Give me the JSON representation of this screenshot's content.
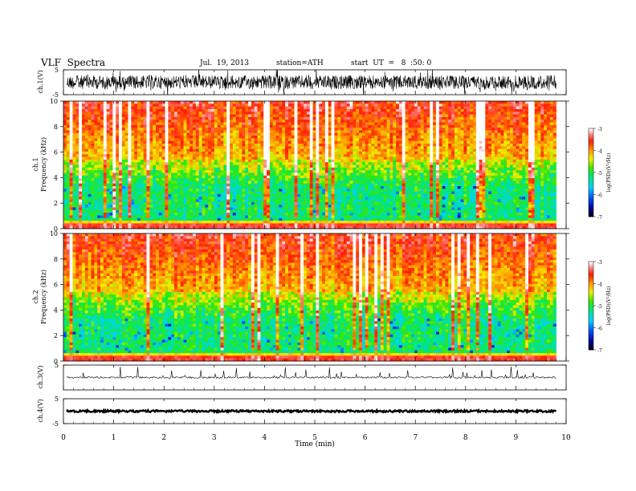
{
  "header": {
    "title": "VLF  Spectra",
    "date": "Jul.  19, 2013",
    "station": "station=ATH",
    "start": "start  UT  =   8  :50: 0"
  },
  "chart_data": [
    {
      "type": "line",
      "name": "ch1-waveform",
      "ylabel": "ch.1(V)",
      "ylim": [
        -5,
        5
      ],
      "yticks": [
        "5",
        "-5"
      ],
      "xlim": [
        0,
        10
      ]
    },
    {
      "type": "heatmap",
      "name": "ch1-spectrogram",
      "ylabel": "ch.1\nFrequency  (kHz)",
      "ylabel_lines": [
        "ch.1",
        "Frequency  (kHz)"
      ],
      "ylim": [
        0,
        10
      ],
      "yticks": [
        "0",
        "2",
        "4",
        "6",
        "8",
        "10"
      ],
      "xlim": [
        0,
        9.8
      ],
      "colorbar": {
        "label": "log(PSD)(V²/Hz)",
        "range": [
          -7,
          -3
        ],
        "ticks": [
          "-3",
          "-4",
          "-5",
          "-6",
          "-7"
        ]
      }
    },
    {
      "type": "heatmap",
      "name": "ch2-spectrogram",
      "ylabel": "ch.2\nFrequency  (kHz)",
      "ylabel_lines": [
        "ch.2",
        "Frequency  (kHz)"
      ],
      "ylim": [
        0,
        10
      ],
      "yticks": [
        "0",
        "2",
        "4",
        "6",
        "8",
        "10"
      ],
      "xlim": [
        0,
        9.8
      ],
      "colorbar": {
        "label": "log(PSD)(V²/Hz)",
        "range": [
          -7,
          -3
        ],
        "ticks": [
          "-3",
          "-4",
          "-5",
          "-6",
          "-7"
        ]
      }
    },
    {
      "type": "line",
      "name": "ch3-waveform",
      "ylabel": "ch.3(V)",
      "ylim": [
        -5,
        5
      ],
      "yticks": [
        "5"
      ],
      "xlim": [
        0,
        10
      ]
    },
    {
      "type": "line",
      "name": "ch4-waveform",
      "ylabel": "ch.4(V)",
      "ylim": [
        -5,
        5
      ],
      "yticks": [
        "5",
        "-5"
      ],
      "xlim": [
        0,
        10
      ]
    }
  ],
  "x_axis": {
    "label": "Time  (min)",
    "ticks": [
      0,
      1,
      2,
      3,
      4,
      5,
      6,
      7,
      8,
      9,
      10
    ]
  }
}
